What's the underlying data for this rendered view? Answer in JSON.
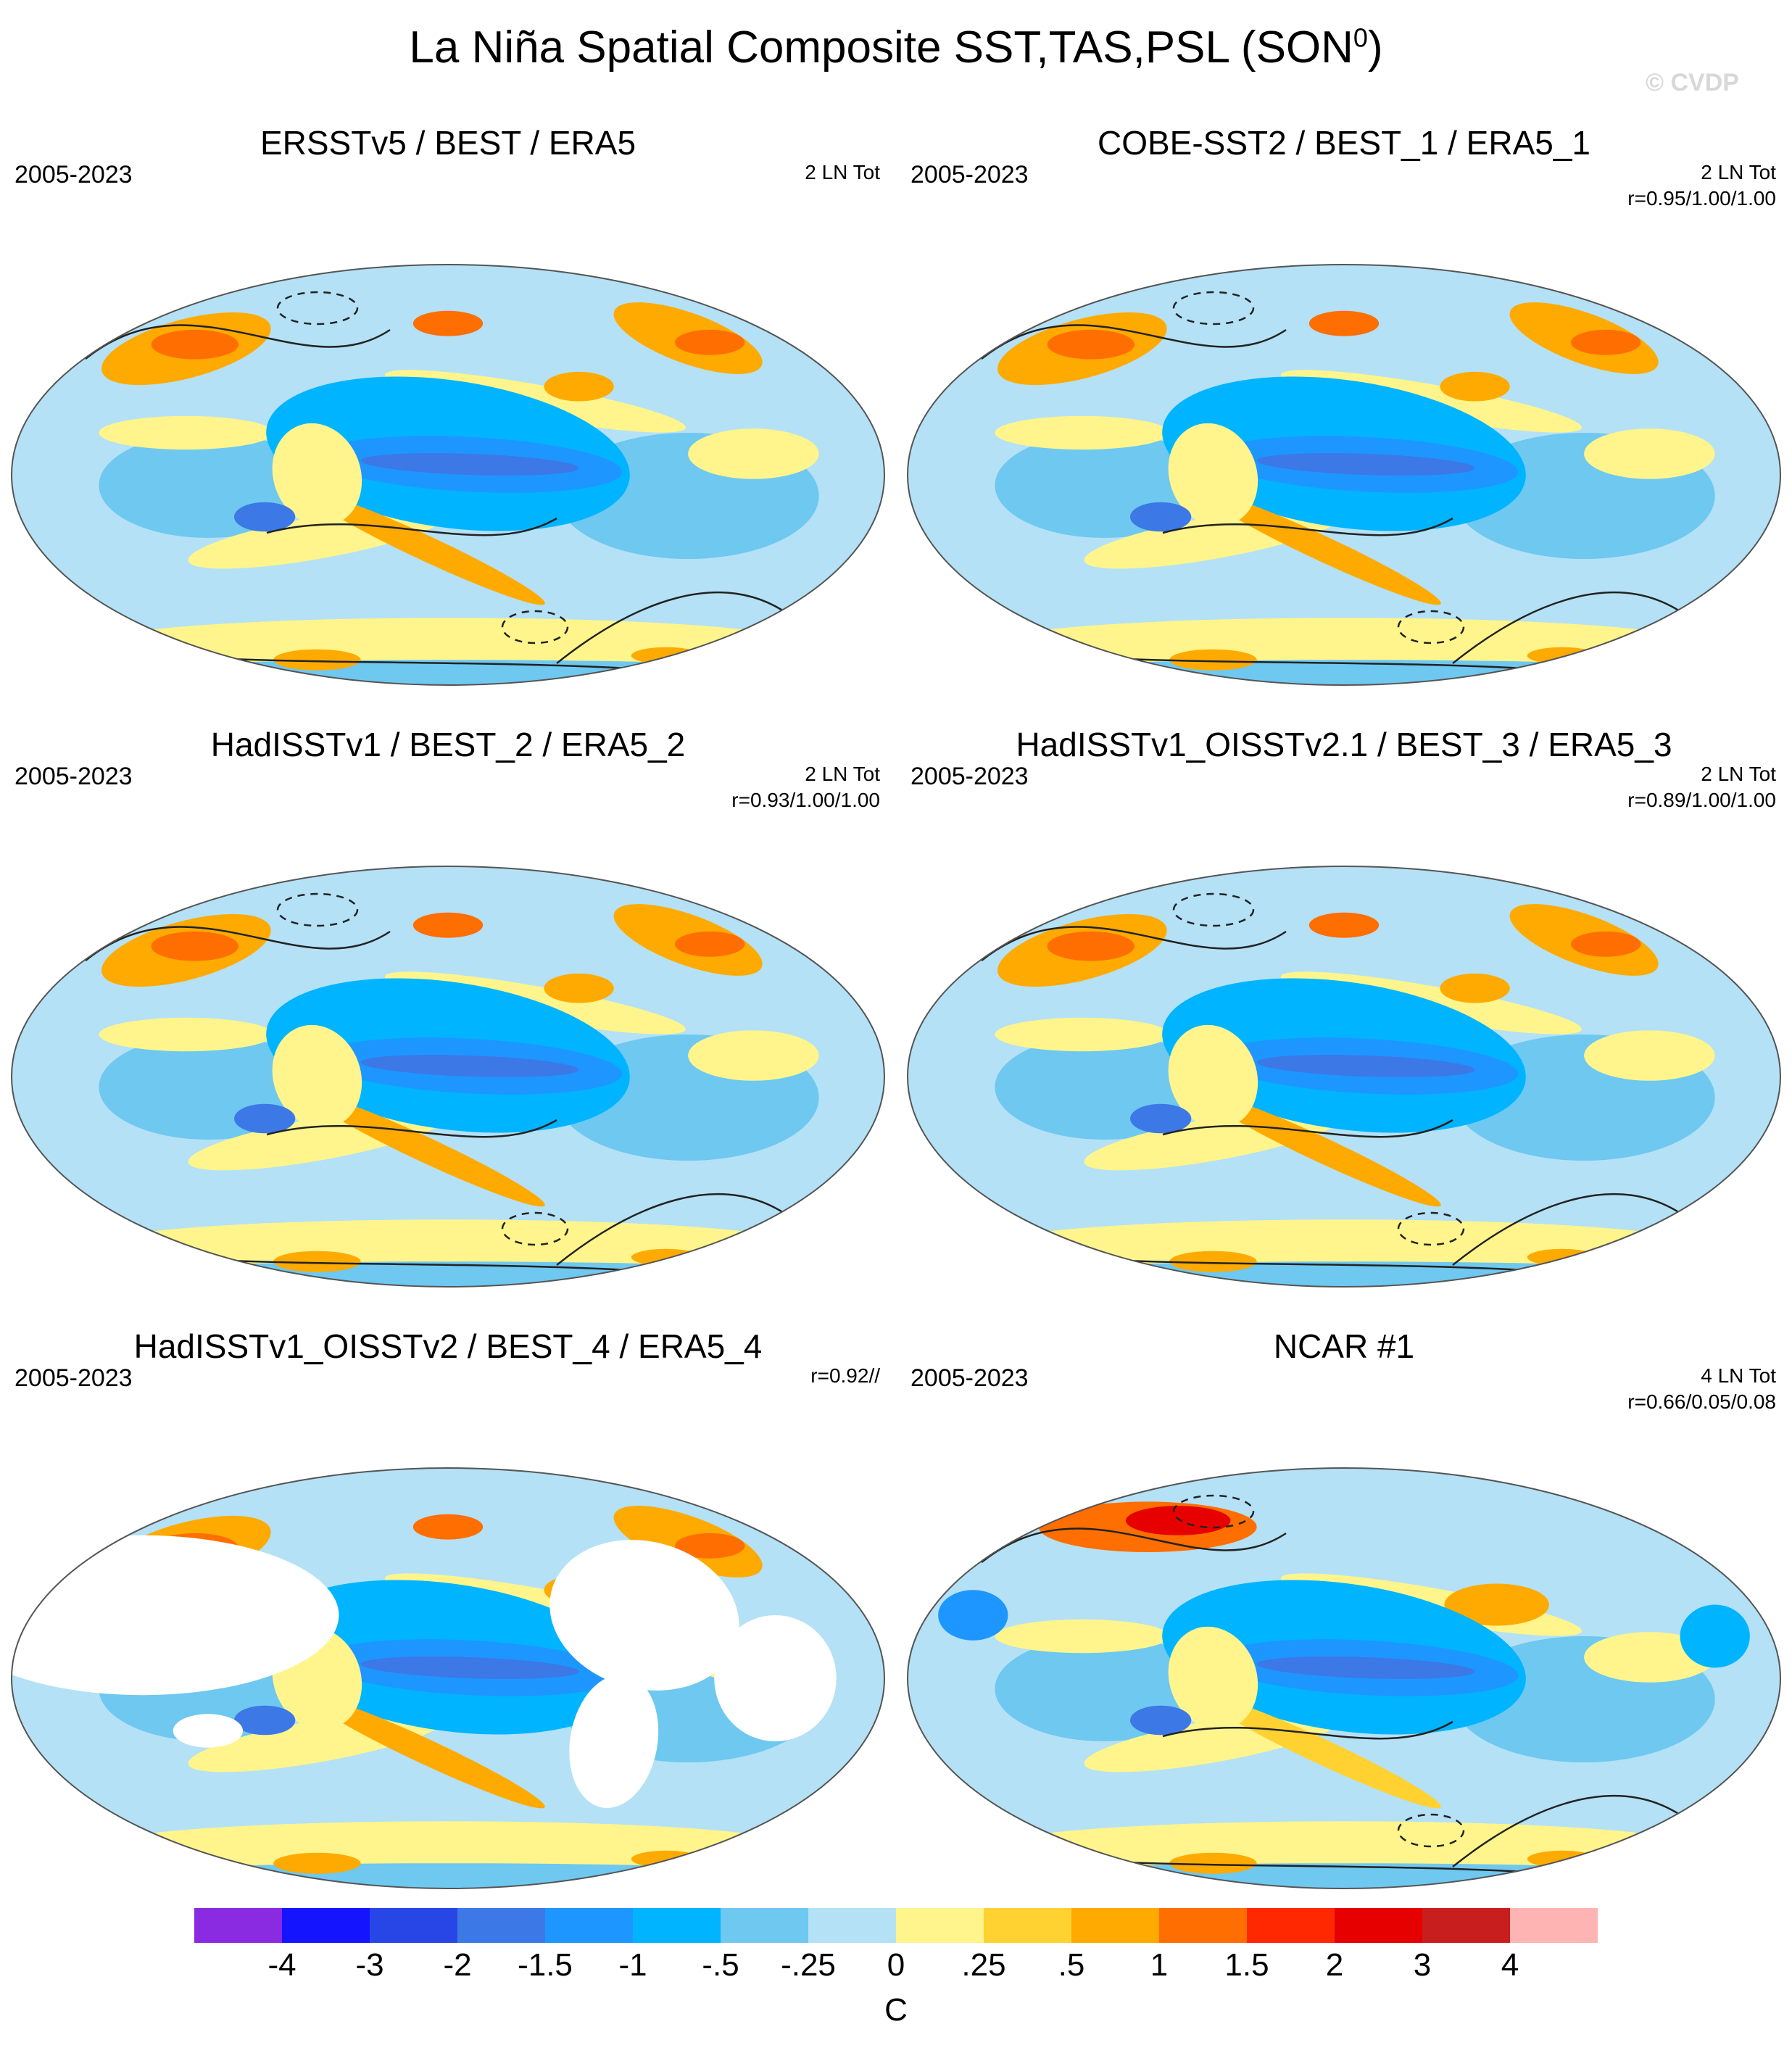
{
  "title": "La Niña Spatial Composite SST,TAS,PSL (SON",
  "title_superscript": "0",
  "title_suffix": ")",
  "watermark": "© CVDP",
  "panels": [
    {
      "title": "ERSSTv5 / BEST / ERA5",
      "years": "2005-2023",
      "stat_line1": "2 LN Tot",
      "stat_line2": "",
      "land_masked": false
    },
    {
      "title": "COBE-SST2 / BEST_1 / ERA5_1",
      "years": "2005-2023",
      "stat_line1": "2 LN Tot",
      "stat_line2": "r=0.95/1.00/1.00",
      "land_masked": false
    },
    {
      "title": "HadISSTv1 / BEST_2 / ERA5_2",
      "years": "2005-2023",
      "stat_line1": "2 LN Tot",
      "stat_line2": "r=0.93/1.00/1.00",
      "land_masked": false
    },
    {
      "title": "HadISSTv1_OISSTv2.1 / BEST_3 / ERA5_3",
      "years": "2005-2023",
      "stat_line1": "2 LN Tot",
      "stat_line2": "r=0.89/1.00/1.00",
      "land_masked": false
    },
    {
      "title": "HadISSTv1_OISSTv2 / BEST_4 / ERA5_4",
      "years": "2005-2023",
      "stat_line1": "",
      "stat_line2": "r=0.92//",
      "land_masked": true
    },
    {
      "title": "NCAR #1",
      "years": "2005-2023",
      "stat_line1": "4 LN Tot",
      "stat_line2": "r=0.66/0.05/0.08",
      "land_masked": false
    }
  ],
  "colorbar": {
    "colors": [
      "#8a2be2",
      "#1414ff",
      "#2846e6",
      "#3c78e6",
      "#1e96ff",
      "#00b4ff",
      "#6ec8f0",
      "#b4e1f5",
      "#fff58c",
      "#ffd232",
      "#ffaa00",
      "#ff6e00",
      "#ff2800",
      "#e60000",
      "#c81e1e",
      "#ffb4b4"
    ],
    "labels": [
      "-4",
      "-3",
      "-2",
      "-1.5",
      "-1",
      "-.5",
      "-.25",
      "0",
      ".25",
      ".5",
      "1",
      "1.5",
      "2",
      "3",
      "4"
    ],
    "units": "C"
  }
}
